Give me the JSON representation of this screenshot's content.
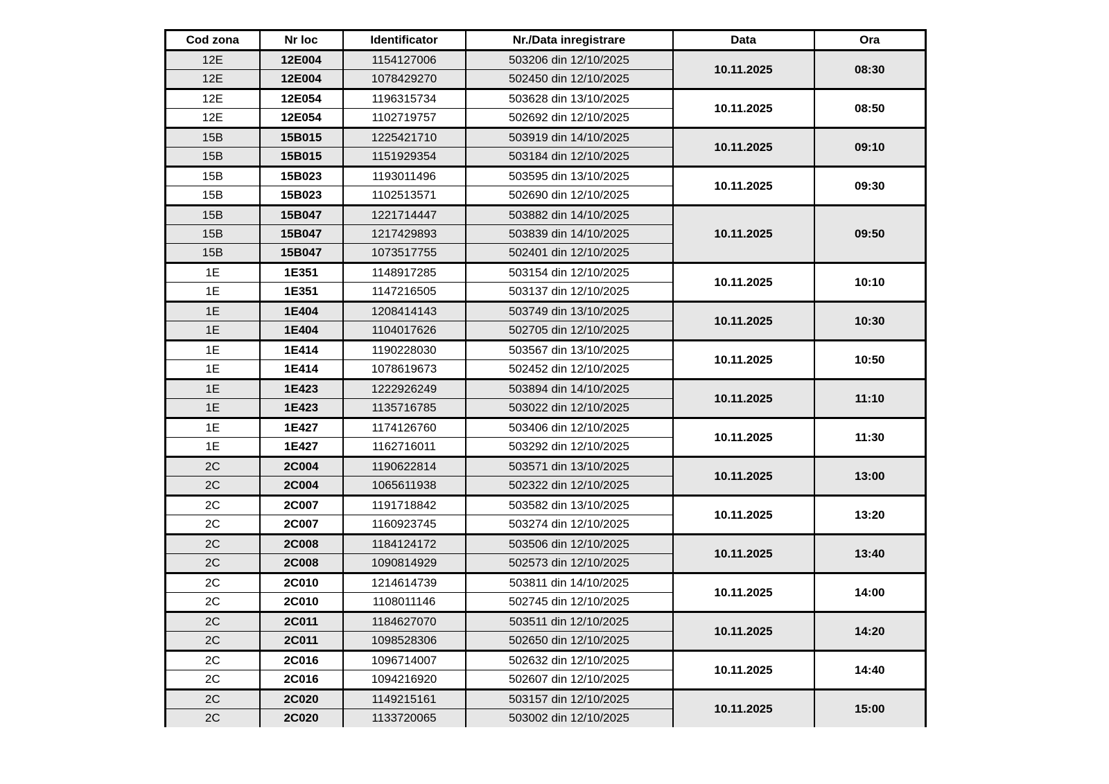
{
  "table": {
    "columns": [
      "Cod zona",
      "Nr loc",
      "Identificator",
      "Nr./Data inregistrare",
      "Data",
      "Ora"
    ],
    "groups": [
      {
        "rows": [
          [
            "12E",
            "12E004",
            "1154127006",
            "503206 din 12/10/2025"
          ],
          [
            "12E",
            "12E004",
            "1078429270",
            "502450 din 12/10/2025"
          ]
        ],
        "data": "10.11.2025",
        "ora": "08:30"
      },
      {
        "rows": [
          [
            "12E",
            "12E054",
            "1196315734",
            "503628 din 13/10/2025"
          ],
          [
            "12E",
            "12E054",
            "1102719757",
            "502692 din 12/10/2025"
          ]
        ],
        "data": "10.11.2025",
        "ora": "08:50"
      },
      {
        "rows": [
          [
            "15B",
            "15B015",
            "1225421710",
            "503919 din 14/10/2025"
          ],
          [
            "15B",
            "15B015",
            "1151929354",
            "503184 din 12/10/2025"
          ]
        ],
        "data": "10.11.2025",
        "ora": "09:10"
      },
      {
        "rows": [
          [
            "15B",
            "15B023",
            "1193011496",
            "503595 din 13/10/2025"
          ],
          [
            "15B",
            "15B023",
            "1102513571",
            "502690 din 12/10/2025"
          ]
        ],
        "data": "10.11.2025",
        "ora": "09:30"
      },
      {
        "rows": [
          [
            "15B",
            "15B047",
            "1221714447",
            "503882 din 14/10/2025"
          ],
          [
            "15B",
            "15B047",
            "1217429893",
            "503839 din 14/10/2025"
          ],
          [
            "15B",
            "15B047",
            "1073517755",
            "502401 din 12/10/2025"
          ]
        ],
        "data": "10.11.2025",
        "ora": "09:50"
      },
      {
        "rows": [
          [
            "1E",
            "1E351",
            "1148917285",
            "503154 din 12/10/2025"
          ],
          [
            "1E",
            "1E351",
            "1147216505",
            "503137 din 12/10/2025"
          ]
        ],
        "data": "10.11.2025",
        "ora": "10:10"
      },
      {
        "rows": [
          [
            "1E",
            "1E404",
            "1208414143",
            "503749 din 13/10/2025"
          ],
          [
            "1E",
            "1E404",
            "1104017626",
            "502705 din 12/10/2025"
          ]
        ],
        "data": "10.11.2025",
        "ora": "10:30"
      },
      {
        "rows": [
          [
            "1E",
            "1E414",
            "1190228030",
            "503567 din 13/10/2025"
          ],
          [
            "1E",
            "1E414",
            "1078619673",
            "502452 din 12/10/2025"
          ]
        ],
        "data": "10.11.2025",
        "ora": "10:50"
      },
      {
        "rows": [
          [
            "1E",
            "1E423",
            "1222926249",
            "503894 din 14/10/2025"
          ],
          [
            "1E",
            "1E423",
            "1135716785",
            "503022 din 12/10/2025"
          ]
        ],
        "data": "10.11.2025",
        "ora": "11:10"
      },
      {
        "rows": [
          [
            "1E",
            "1E427",
            "1174126760",
            "503406 din 12/10/2025"
          ],
          [
            "1E",
            "1E427",
            "1162716011",
            "503292 din 12/10/2025"
          ]
        ],
        "data": "10.11.2025",
        "ora": "11:30"
      },
      {
        "rows": [
          [
            "2C",
            "2C004",
            "1190622814",
            "503571 din 13/10/2025"
          ],
          [
            "2C",
            "2C004",
            "1065611938",
            "502322 din 12/10/2025"
          ]
        ],
        "data": "10.11.2025",
        "ora": "13:00"
      },
      {
        "rows": [
          [
            "2C",
            "2C007",
            "1191718842",
            "503582 din 13/10/2025"
          ],
          [
            "2C",
            "2C007",
            "1160923745",
            "503274 din 12/10/2025"
          ]
        ],
        "data": "10.11.2025",
        "ora": "13:20"
      },
      {
        "rows": [
          [
            "2C",
            "2C008",
            "1184124172",
            "503506 din 12/10/2025"
          ],
          [
            "2C",
            "2C008",
            "1090814929",
            "502573 din 12/10/2025"
          ]
        ],
        "data": "10.11.2025",
        "ora": "13:40"
      },
      {
        "rows": [
          [
            "2C",
            "2C010",
            "1214614739",
            "503811 din 14/10/2025"
          ],
          [
            "2C",
            "2C010",
            "1108011146",
            "502745 din 12/10/2025"
          ]
        ],
        "data": "10.11.2025",
        "ora": "14:00"
      },
      {
        "rows": [
          [
            "2C",
            "2C011",
            "1184627070",
            "503511 din 12/10/2025"
          ],
          [
            "2C",
            "2C011",
            "1098528306",
            "502650 din 12/10/2025"
          ]
        ],
        "data": "10.11.2025",
        "ora": "14:20"
      },
      {
        "rows": [
          [
            "2C",
            "2C016",
            "1096714007",
            "502632 din 12/10/2025"
          ],
          [
            "2C",
            "2C016",
            "1094216920",
            "502607 din 12/10/2025"
          ]
        ],
        "data": "10.11.2025",
        "ora": "14:40"
      },
      {
        "rows": [
          [
            "2C",
            "2C020",
            "1149215161",
            "503157 din 12/10/2025"
          ],
          [
            "2C",
            "2C020",
            "1133720065",
            "503002 din 12/10/2025"
          ]
        ],
        "data": "10.11.2025",
        "ora": "15:00"
      }
    ]
  }
}
